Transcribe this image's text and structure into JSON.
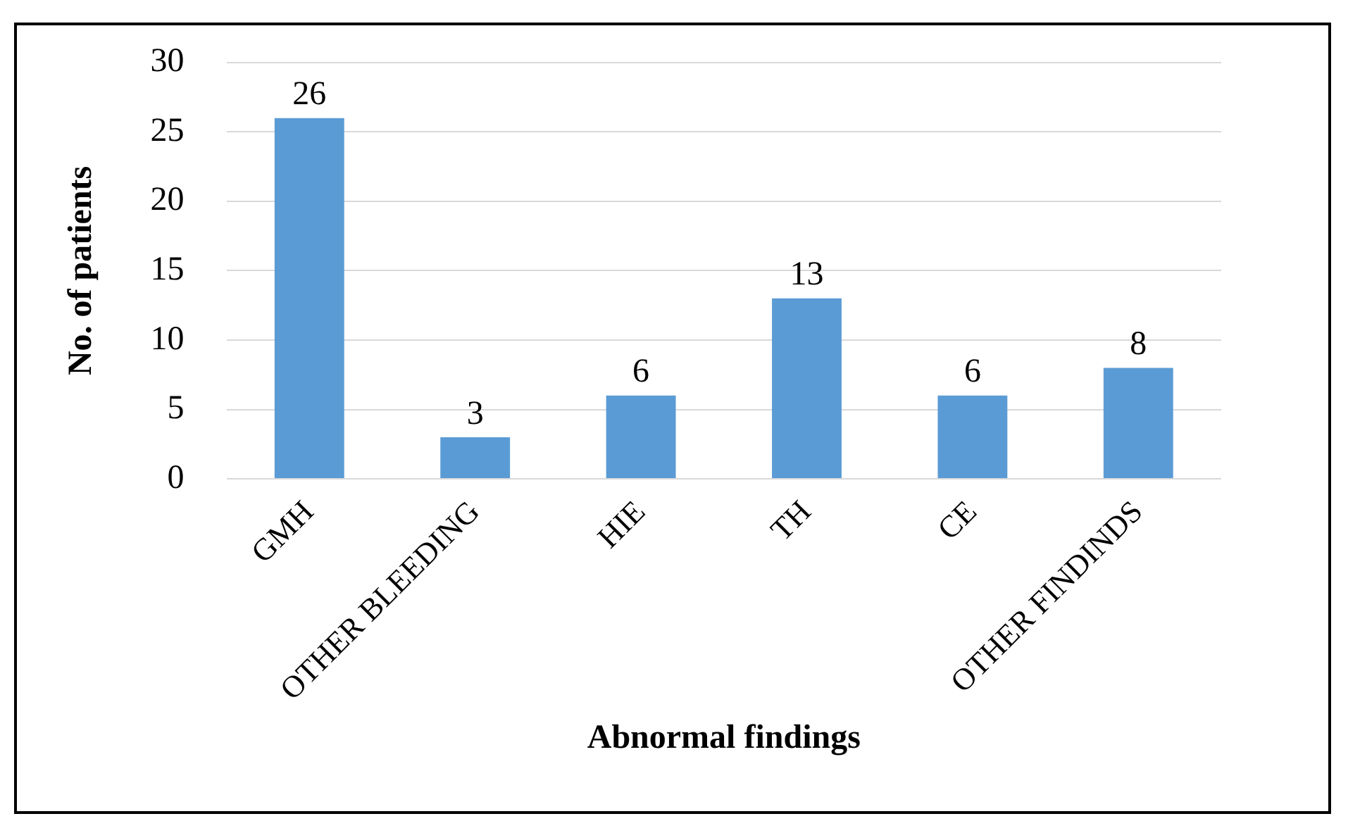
{
  "chart_data": {
    "type": "bar",
    "xlabel": "Abnormal findings",
    "ylabel": "No. of patients",
    "categories": [
      "GMH",
      "OTHER BLEEDING",
      "HIE",
      "TH",
      "CE",
      "OTHER FINDINDS"
    ],
    "values": [
      26,
      3,
      6,
      13,
      6,
      8
    ],
    "color": "#5b9bd5",
    "ylim": [
      0,
      30
    ],
    "yticks": [
      0,
      5,
      10,
      15,
      20,
      25,
      30
    ],
    "grid": "y",
    "data_labels": true
  }
}
